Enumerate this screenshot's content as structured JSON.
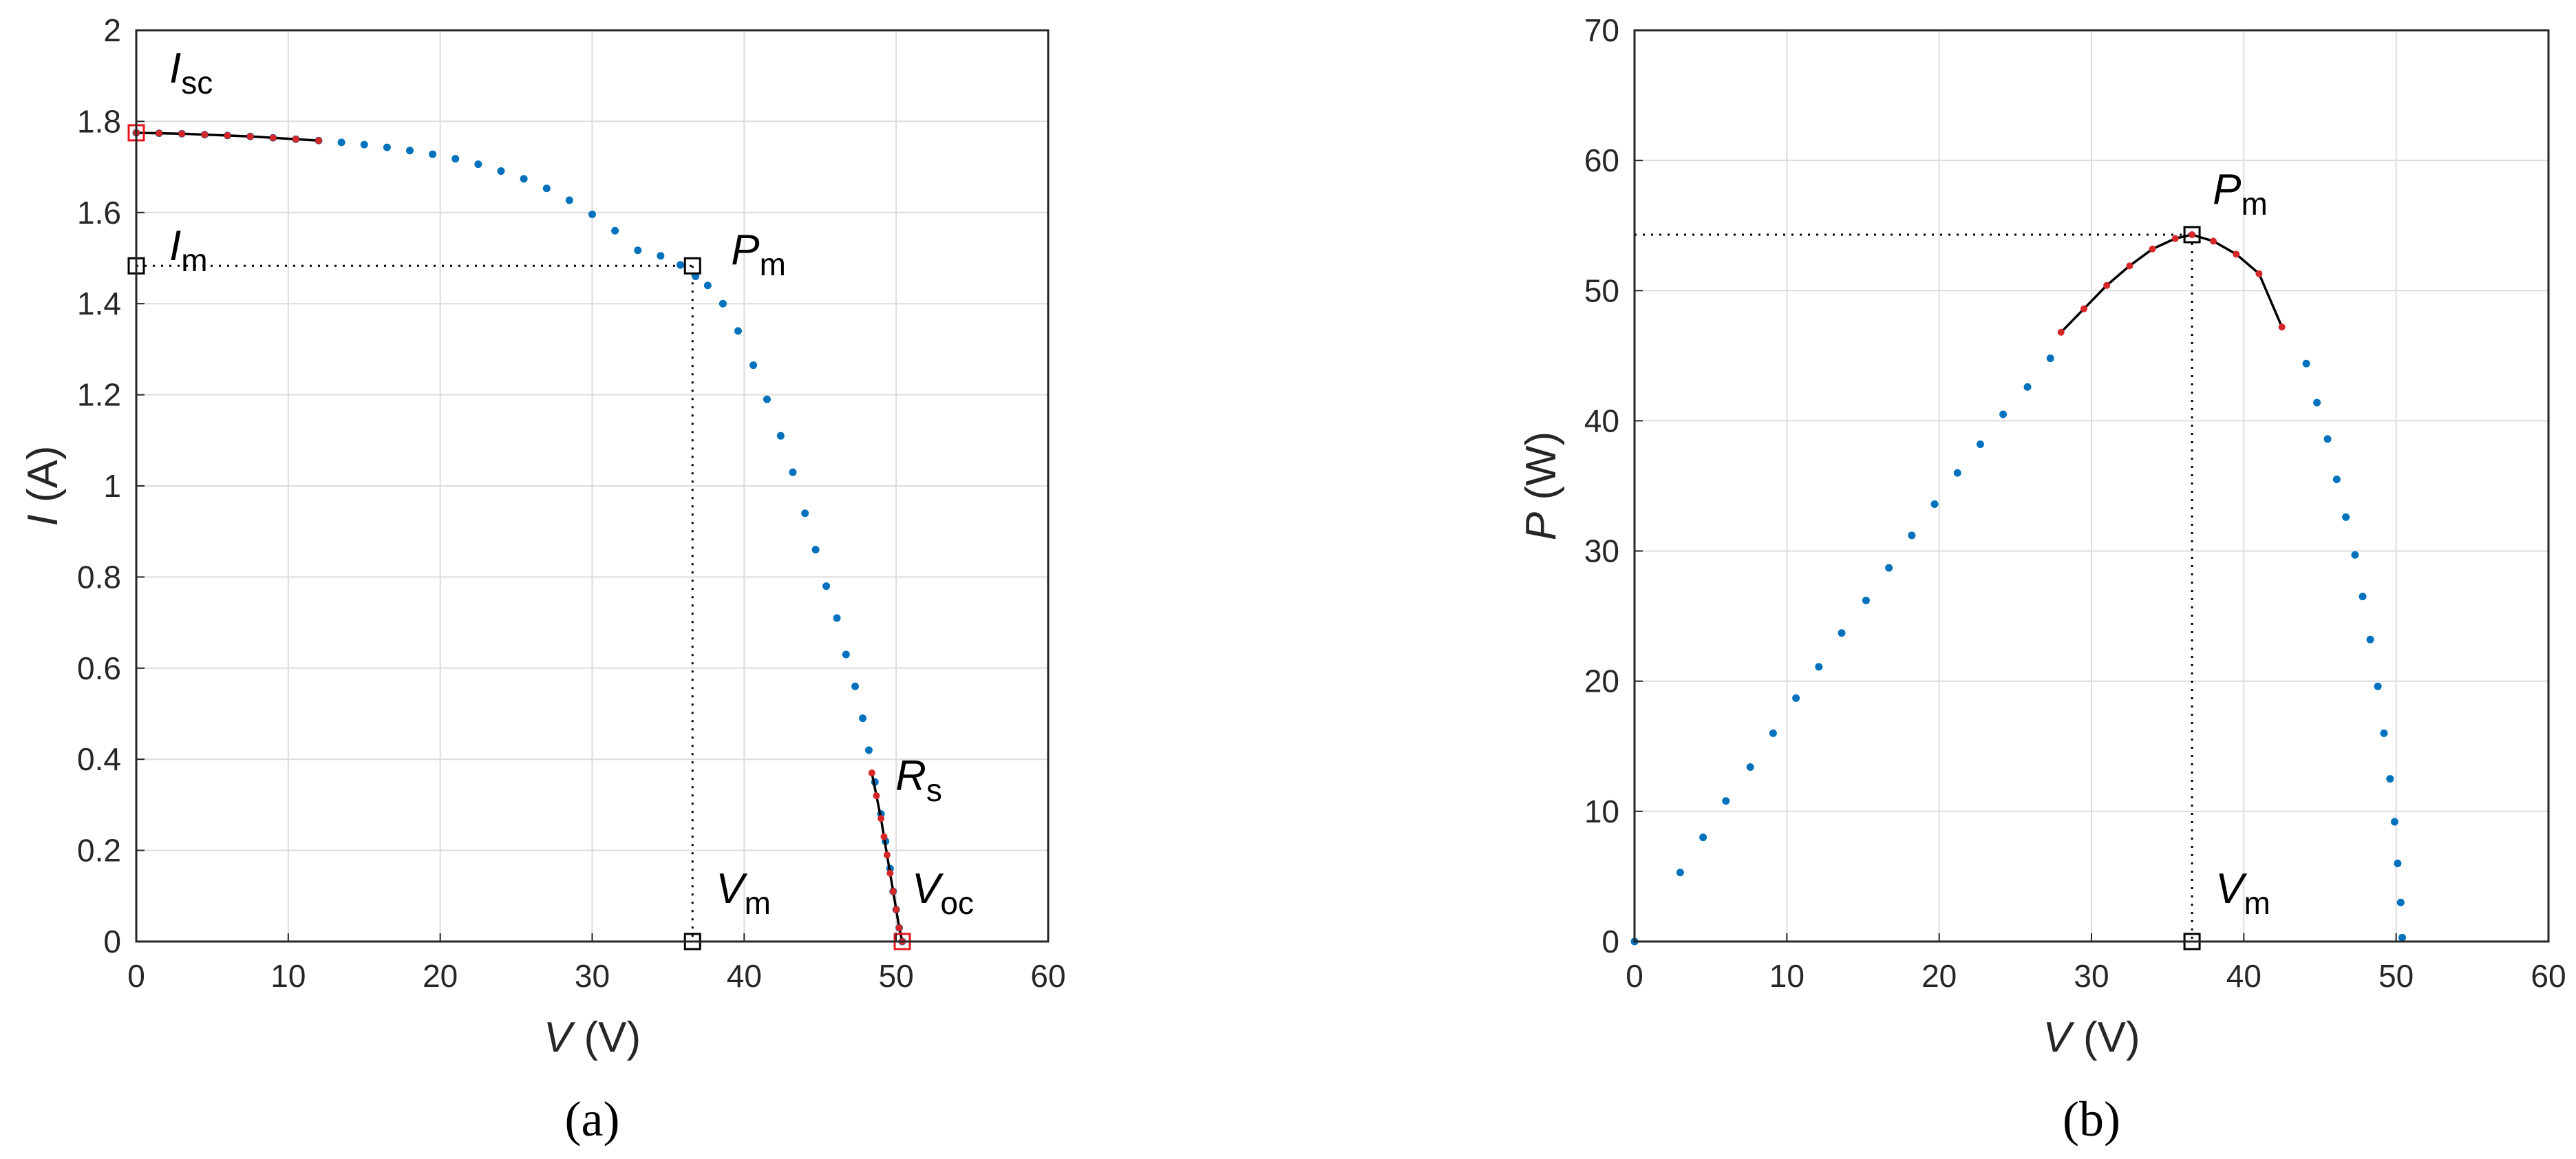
{
  "chart_data": [
    {
      "type": "scatter",
      "panel_label": "(a)",
      "xlabel": "V (V)",
      "ylabel": "I (A)",
      "xlim": [
        0,
        60
      ],
      "ylim": [
        0,
        2
      ],
      "xticks": [
        0,
        10,
        20,
        30,
        40,
        50,
        60
      ],
      "yticks": [
        0,
        0.2,
        0.4,
        0.6,
        0.8,
        1,
        1.2,
        1.4,
        1.6,
        1.8,
        2
      ],
      "grid": true,
      "annotations": {
        "isc": "I_sc",
        "im": "I_m",
        "pm": "P_m",
        "rs": "R_s",
        "vm": "V_m",
        "voc": "V_oc"
      },
      "series": [
        {
          "role": "measured",
          "color": "#0072BD",
          "x": [
            0,
            1.5,
            3,
            4.5,
            6,
            7.5,
            9,
            10.5,
            12,
            13.5,
            15,
            16.5,
            18,
            19.5,
            21,
            22.5,
            24,
            25.5,
            27,
            28.5,
            30,
            31.5,
            33,
            34.5,
            35.8,
            36.8,
            37.6,
            38.6,
            39.6,
            40.6,
            41.5,
            42.4,
            43.2,
            44.0,
            44.7,
            45.4,
            46.1,
            46.7,
            47.3,
            47.8,
            48.2,
            48.6,
            49.0,
            49.3,
            49.6,
            49.8,
            50.0,
            50.2,
            50.4
          ],
          "y": [
            1.775,
            1.774,
            1.773,
            1.771,
            1.769,
            1.767,
            1.764,
            1.761,
            1.758,
            1.754,
            1.749,
            1.743,
            1.736,
            1.728,
            1.718,
            1.706,
            1.691,
            1.674,
            1.653,
            1.627,
            1.596,
            1.56,
            1.517,
            1.505,
            1.485,
            1.46,
            1.44,
            1.4,
            1.34,
            1.265,
            1.19,
            1.11,
            1.03,
            0.94,
            0.86,
            0.78,
            0.71,
            0.63,
            0.56,
            0.49,
            0.42,
            0.35,
            0.28,
            0.22,
            0.16,
            0.11,
            0.07,
            0.03,
            0.0
          ]
        },
        {
          "role": "fit_isc",
          "color": "#D62728",
          "x": [
            0,
            1.5,
            3,
            4.5,
            6,
            7.5,
            9,
            10.5,
            12
          ],
          "y": [
            1.775,
            1.774,
            1.773,
            1.771,
            1.769,
            1.767,
            1.764,
            1.761,
            1.758
          ]
        },
        {
          "role": "fit_voc",
          "color": "#D62728",
          "x": [
            48.4,
            48.7,
            49.0,
            49.2,
            49.4,
            49.6,
            49.8,
            50.0,
            50.2,
            50.4
          ],
          "y": [
            0.37,
            0.32,
            0.27,
            0.23,
            0.19,
            0.15,
            0.11,
            0.07,
            0.03,
            0.0
          ]
        }
      ],
      "key_points": {
        "isc": {
          "x": 0,
          "y": 1.775
        },
        "voc": {
          "x": 50.4,
          "y": 0
        },
        "pm": {
          "x": 36.6,
          "y": 1.483
        },
        "im": {
          "x": 0,
          "y": 1.483
        },
        "vm": {
          "x": 36.6,
          "y": 0
        }
      }
    },
    {
      "type": "scatter",
      "panel_label": "(b)",
      "xlabel": "V (V)",
      "ylabel": "P (W)",
      "xlim": [
        0,
        60
      ],
      "ylim": [
        0,
        70
      ],
      "xticks": [
        0,
        10,
        20,
        30,
        40,
        50,
        60
      ],
      "yticks": [
        0,
        10,
        20,
        30,
        40,
        50,
        60,
        70
      ],
      "grid": true,
      "annotations": {
        "pm": "P_m",
        "vm": "V_m"
      },
      "series": [
        {
          "role": "measured",
          "color": "#0072BD",
          "x": [
            0,
            3,
            4.5,
            6,
            7.6,
            9.1,
            10.6,
            12.1,
            13.6,
            15.2,
            16.7,
            18.2,
            19.7,
            21.2,
            22.7,
            24.2,
            25.8,
            27.3,
            44.1,
            44.8,
            45.5,
            46.1,
            46.7,
            47.3,
            47.8,
            48.3,
            48.8,
            49.2,
            49.6,
            49.9,
            50.1,
            50.3,
            50.4
          ],
          "y": [
            0,
            5.3,
            8.0,
            10.8,
            13.4,
            16.0,
            18.7,
            21.1,
            23.7,
            26.2,
            28.7,
            31.2,
            33.6,
            36.0,
            38.2,
            40.5,
            42.6,
            44.8,
            44.4,
            41.4,
            38.6,
            35.5,
            32.6,
            29.7,
            26.5,
            23.2,
            19.6,
            16.0,
            12.5,
            9.2,
            6.0,
            3.0,
            0.3
          ]
        },
        {
          "role": "fit_pm",
          "color": "#D62728",
          "x": [
            28.0,
            29.5,
            31.0,
            32.5,
            34.0,
            35.5,
            36.6,
            38.0,
            39.5,
            41.0,
            42.5
          ],
          "y": [
            46.8,
            48.6,
            50.4,
            51.9,
            53.2,
            54.0,
            54.3,
            53.8,
            52.8,
            51.3,
            47.2
          ]
        }
      ],
      "key_points": {
        "pm": {
          "x": 36.6,
          "y": 54.3
        },
        "vm": {
          "x": 36.6,
          "y": 0
        }
      }
    }
  ]
}
